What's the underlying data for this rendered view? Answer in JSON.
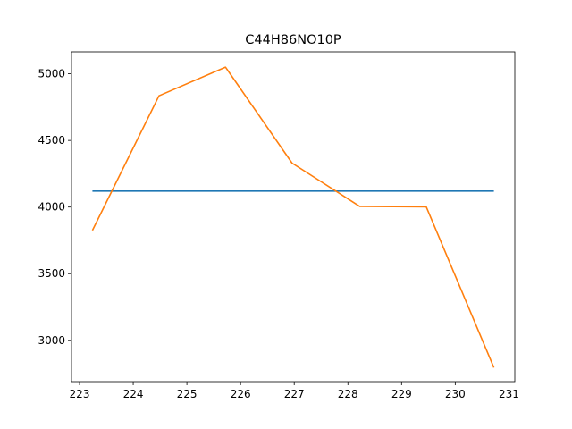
{
  "chart_data": {
    "type": "line",
    "title": "C44H86NO10P",
    "xlabel": "",
    "ylabel": "",
    "xlim": [
      222.85,
      231.11
    ],
    "ylim": [
      2690,
      5165
    ],
    "x_ticks": [
      223,
      224,
      225,
      226,
      227,
      228,
      229,
      230,
      231
    ],
    "y_ticks": [
      3000,
      3500,
      4000,
      4500,
      5000
    ],
    "grid": false,
    "legend": "none",
    "series": [
      {
        "color": "#1f77b4",
        "x": [
          223.24,
          230.72
        ],
        "y": [
          4120,
          4120
        ]
      },
      {
        "color": "#ff7f0e",
        "x": [
          223.24,
          224.48,
          225.72,
          226.96,
          228.22,
          229.46,
          230.72
        ],
        "y": [
          3825,
          4835,
          5050,
          4330,
          4005,
          4002,
          2795
        ]
      }
    ]
  }
}
